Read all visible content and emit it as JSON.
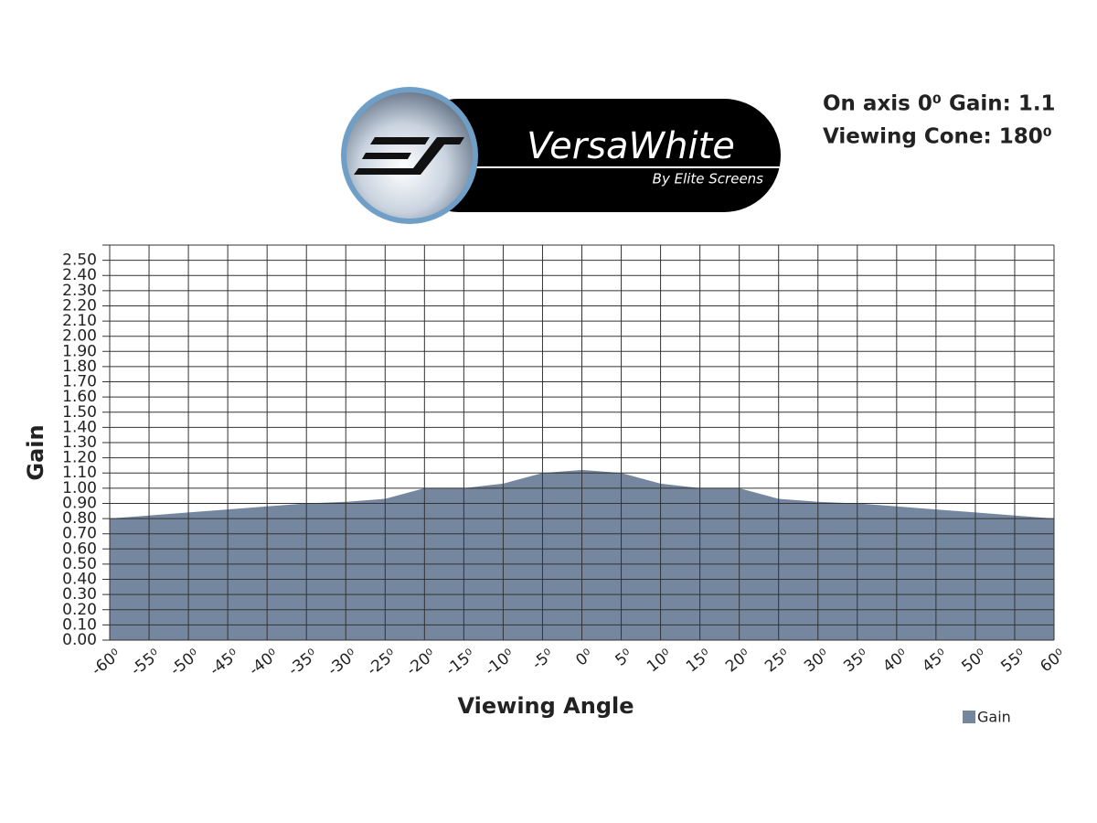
{
  "header": {
    "logo_text": "VersaWhite",
    "logo_subtext": "By Elite Screens",
    "specs": [
      "On axis 0⁰ Gain: 1.1",
      "Viewing Cone: 180⁰"
    ]
  },
  "chart_data": {
    "type": "area",
    "x_label": "Viewing Angle",
    "y_label": "Gain",
    "x": [
      -60,
      -55,
      -50,
      -45,
      -40,
      -35,
      -30,
      -25,
      -20,
      -15,
      -10,
      -5,
      0,
      5,
      10,
      15,
      20,
      25,
      30,
      35,
      40,
      45,
      50,
      55,
      60
    ],
    "series": [
      {
        "name": "Gain",
        "color": "#75869f",
        "values": [
          0.8,
          0.82,
          0.84,
          0.86,
          0.88,
          0.9,
          0.91,
          0.93,
          1.0,
          1.0,
          1.03,
          1.1,
          1.12,
          1.1,
          1.03,
          1.0,
          1.0,
          0.93,
          0.91,
          0.9,
          0.88,
          0.86,
          0.84,
          0.82,
          0.8
        ]
      }
    ],
    "xlim": [
      -60,
      60
    ],
    "ylim": [
      0,
      2.6
    ],
    "xticks": [
      {
        "value": -60,
        "label": "-60⁰"
      },
      {
        "value": -55,
        "label": "-55⁰"
      },
      {
        "value": -50,
        "label": "-50⁰"
      },
      {
        "value": -45,
        "label": "-45⁰"
      },
      {
        "value": -40,
        "label": "-40⁰"
      },
      {
        "value": -35,
        "label": "-35⁰"
      },
      {
        "value": -30,
        "label": "-30⁰"
      },
      {
        "value": -25,
        "label": "-25⁰"
      },
      {
        "value": -20,
        "label": "-20⁰"
      },
      {
        "value": -15,
        "label": "-15⁰"
      },
      {
        "value": -10,
        "label": "-10⁰"
      },
      {
        "value": -5,
        "label": "-5⁰"
      },
      {
        "value": 0,
        "label": "0⁰"
      },
      {
        "value": 5,
        "label": "5⁰"
      },
      {
        "value": 10,
        "label": "10⁰"
      },
      {
        "value": 15,
        "label": "15⁰"
      },
      {
        "value": 20,
        "label": "20⁰"
      },
      {
        "value": 25,
        "label": "25⁰"
      },
      {
        "value": 30,
        "label": "30⁰"
      },
      {
        "value": 35,
        "label": "35⁰"
      },
      {
        "value": 40,
        "label": "40⁰"
      },
      {
        "value": 45,
        "label": "45⁰"
      },
      {
        "value": 50,
        "label": "50⁰"
      },
      {
        "value": 55,
        "label": "55⁰"
      },
      {
        "value": 60,
        "label": "60⁰"
      }
    ],
    "yticks": [
      {
        "value": 0,
        "label": "0.00"
      },
      {
        "value": 0.1,
        "label": "0.10"
      },
      {
        "value": 0.2,
        "label": "0.20"
      },
      {
        "value": 0.3,
        "label": "0.30"
      },
      {
        "value": 0.4,
        "label": "0.40"
      },
      {
        "value": 0.5,
        "label": "0.50"
      },
      {
        "value": 0.6,
        "label": "0.60"
      },
      {
        "value": 0.7,
        "label": "0.70"
      },
      {
        "value": 0.8,
        "label": "0.80"
      },
      {
        "value": 0.9,
        "label": "0.90"
      },
      {
        "value": 1,
        "label": "1.00"
      },
      {
        "value": 1.1,
        "label": "1.10"
      },
      {
        "value": 1.2,
        "label": "1.20"
      },
      {
        "value": 1.3,
        "label": "1.30"
      },
      {
        "value": 1.4,
        "label": "1.40"
      },
      {
        "value": 1.5,
        "label": "1.50"
      },
      {
        "value": 1.6,
        "label": "1.60"
      },
      {
        "value": 1.7,
        "label": "1.70"
      },
      {
        "value": 1.8,
        "label": "1.80"
      },
      {
        "value": 1.9,
        "label": "1.90"
      },
      {
        "value": 2,
        "label": "2.00"
      },
      {
        "value": 2.1,
        "label": "2.10"
      },
      {
        "value": 2.2,
        "label": "2.20"
      },
      {
        "value": 2.3,
        "label": "2.30"
      },
      {
        "value": 2.4,
        "label": "2.40"
      },
      {
        "value": 2.5,
        "label": "2.50"
      }
    ],
    "grid": true,
    "legend": "bottom-right"
  }
}
